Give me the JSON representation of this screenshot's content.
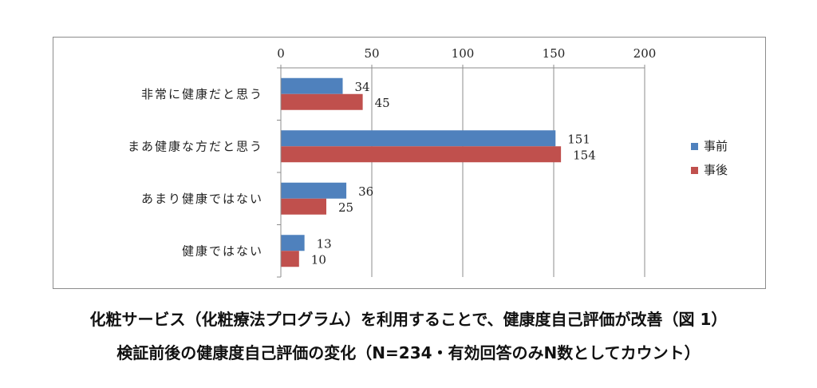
{
  "chart_data": {
    "type": "bar",
    "orientation": "horizontal",
    "categories": [
      "非常に健康だと思う",
      "まあ健康な方だと思う",
      "あまり健康ではない",
      "健康ではない"
    ],
    "series": [
      {
        "name": "事前",
        "values": [
          34,
          151,
          36,
          13
        ],
        "color": "#4f81bd"
      },
      {
        "name": "事後",
        "values": [
          45,
          154,
          25,
          10
        ],
        "color": "#c0504d"
      }
    ],
    "xlim": [
      0,
      200
    ],
    "xticks": [
      "0",
      "50",
      "100",
      "150",
      "200"
    ],
    "xtick_values": [
      0,
      50,
      100,
      150,
      200
    ],
    "grid": true,
    "legend_position": "right"
  },
  "caption": {
    "line1": "化粧サービス（化粧療法プログラム）を利用することで、健康度自己評価が改善（図 1）",
    "line2": "検証前後の健康度自己評価の変化（N=234・有効回答のみN数としてカウント）"
  }
}
